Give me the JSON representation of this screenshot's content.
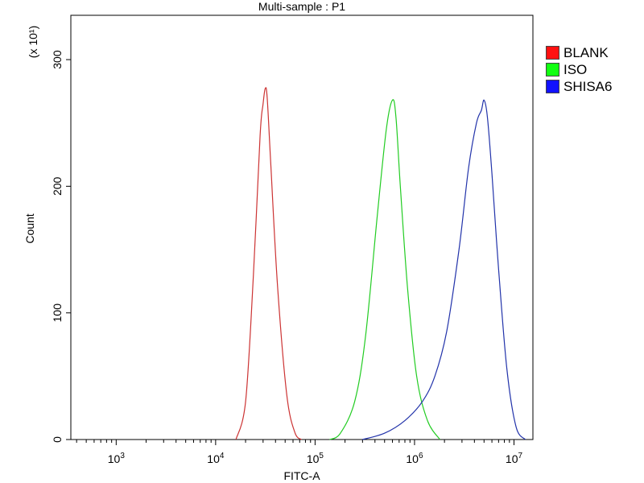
{
  "chart_data": {
    "type": "area",
    "title": "Multi-sample : P1",
    "xlabel": "FITC-A",
    "ylabel": "Count",
    "y_multiplier_label": "(x 10¹)",
    "x_scale": "log",
    "xlim": [
      350,
      15500000
    ],
    "ylim": [
      0,
      335
    ],
    "x_ticks": [
      {
        "value": 1000,
        "base": "10",
        "exp": "3"
      },
      {
        "value": 10000,
        "base": "10",
        "exp": "4"
      },
      {
        "value": 100000,
        "base": "10",
        "exp": "5"
      },
      {
        "value": 1000000,
        "base": "10",
        "exp": "6"
      },
      {
        "value": 10000000,
        "base": "10",
        "exp": "7"
      }
    ],
    "y_ticks": [
      {
        "value": 0,
        "label": "0"
      },
      {
        "value": 100,
        "label": "100"
      },
      {
        "value": 200,
        "label": "200"
      },
      {
        "value": 300,
        "label": "300"
      }
    ],
    "grid": false,
    "legend_position": "right",
    "series": [
      {
        "name": "BLANK",
        "color": "#cc3333",
        "x": [
          16000,
          20000,
          24000,
          28000,
          30000,
          31500,
          33000,
          36000,
          42000,
          52000,
          63000,
          73000
        ],
        "y": [
          0,
          30,
          130,
          240,
          265,
          277,
          270,
          215,
          120,
          35,
          5,
          0
        ]
      },
      {
        "name": "ISO",
        "color": "#22cc22",
        "x": [
          140000,
          180000,
          250000,
          320000,
          420000,
          520000,
          600000,
          650000,
          720000,
          850000,
          1050000,
          1350000,
          1800000
        ],
        "y": [
          0,
          5,
          30,
          80,
          175,
          245,
          268,
          255,
          200,
          120,
          50,
          15,
          0
        ]
      },
      {
        "name": "SHISA6",
        "color": "#2233aa",
        "x": [
          300000,
          500000,
          800000,
          1200000,
          1600000,
          2100000,
          2800000,
          3500000,
          4200000,
          4700000,
          5000000,
          5400000,
          6000000,
          7000000,
          8500000,
          10500000,
          13000000
        ],
        "y": [
          0,
          5,
          15,
          30,
          50,
          85,
          150,
          215,
          250,
          260,
          268,
          255,
          210,
          135,
          55,
          10,
          0
        ]
      }
    ]
  },
  "legend": {
    "items": [
      {
        "label": "BLANK",
        "color": "#ff1111"
      },
      {
        "label": "ISO",
        "color": "#11ff11"
      },
      {
        "label": "SHISA6",
        "color": "#1111ff"
      }
    ]
  }
}
